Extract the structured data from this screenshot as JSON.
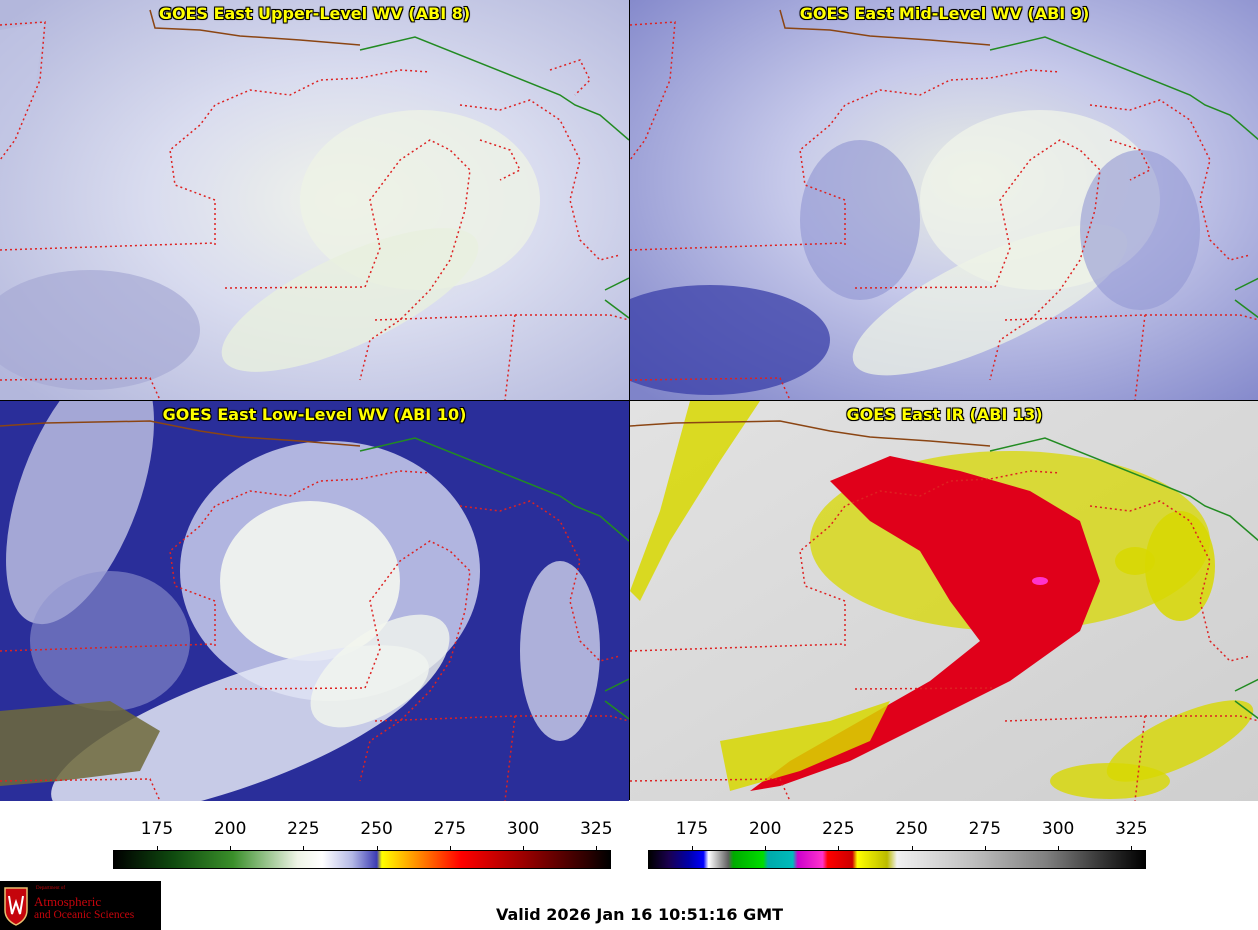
{
  "panels": [
    {
      "title": "GOES East Upper-Level WV (ABI 8)",
      "colormap": "wv"
    },
    {
      "title": "GOES East Mid-Level WV (ABI 9)",
      "colormap": "wv"
    },
    {
      "title": "GOES East Low-Level WV (ABI 10)",
      "colormap": "wv"
    },
    {
      "title": "GOES East IR (ABI 13)",
      "colormap": "ir"
    }
  ],
  "colorbars": {
    "wv": {
      "ticks": [
        "175",
        "200",
        "225",
        "250",
        "275",
        "300",
        "325"
      ],
      "range": [
        160,
        330
      ],
      "colors": [
        "#000000",
        "#0f4a0f",
        "#3a8f2a",
        "#eef4e6",
        "#ffffff",
        "#b4b9e6",
        "#3c3cb4",
        "#ffff00",
        "#ff8000",
        "#ff0000",
        "#a00000",
        "#300000",
        "#000000"
      ]
    },
    "ir": {
      "ticks": [
        "175",
        "200",
        "225",
        "250",
        "275",
        "300",
        "325"
      ],
      "range": [
        160,
        330
      ]
    }
  },
  "logo": {
    "dept": "Department of",
    "line1": "Atmospheric",
    "line2": "and Oceanic Sciences"
  },
  "valid_text": "Valid 2026 Jan 16 10:51:16 GMT",
  "colors": {
    "state_border": "#dd2222",
    "country_border": "#228b22",
    "coast": "#8b4513",
    "title_text": "#ffff00"
  }
}
